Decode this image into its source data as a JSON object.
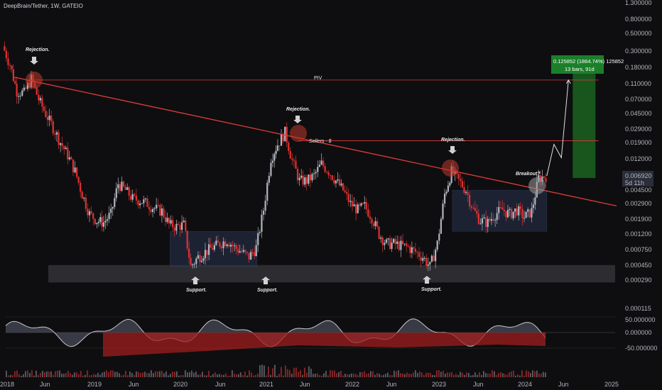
{
  "header": {
    "title": "DeepBrain/Tether, 1W, GATEIO"
  },
  "colors": {
    "up": "#b2b5be",
    "down": "#e03131",
    "bg": "#0e0e10",
    "trend": "#e03b3b",
    "target": "#1b5e20"
  },
  "price_axis": {
    "labels": [
      "1.300000",
      "0.800000",
      "0.500000",
      "0.300000",
      "0.180000",
      "0.110000",
      "0.070000",
      "0.045000",
      "0.029000",
      "0.019000",
      "0.012000",
      "0.004500",
      "0.002900",
      "0.001900",
      "0.001200",
      "0.000750",
      "0.000450",
      "0.000290",
      "0.000115"
    ],
    "current": {
      "value": "0.006920",
      "countdown": "5d 11h"
    }
  },
  "osc_axis": {
    "labels": [
      "50.000000",
      "0.000000",
      "-50.000000"
    ]
  },
  "time_axis": {
    "labels": [
      "2018",
      "Jun",
      "2019",
      "Jun",
      "2020",
      "Jun",
      "2021",
      "Jun",
      "2022",
      "Jun",
      "2023",
      "Jun",
      "2024",
      "Jun",
      "2025"
    ]
  },
  "annotations": {
    "rejection": "Rejection.",
    "support": "Support.",
    "breakout": "Breakout?",
    "sellers": "Sellers - $",
    "piv": "PIV"
  },
  "measure_box": {
    "line1": "0.125852 (1864.74%) 125852",
    "line2": "13 bars, 91d"
  },
  "chart_data": {
    "type": "candlestick",
    "title": "DeepBrain/Tether, 1W, GATEIO",
    "scale": "log",
    "ylim": [
      0.000115,
      1.3
    ],
    "x_range": [
      "2018-01",
      "2025-01"
    ],
    "close_path": [
      {
        "date": "2018-01",
        "close": 0.35
      },
      {
        "date": "2018-02",
        "close": 0.2
      },
      {
        "date": "2018-03",
        "close": 0.09
      },
      {
        "date": "2018-04",
        "close": 0.085
      },
      {
        "date": "2018-05",
        "close": 0.13
      },
      {
        "date": "2018-06",
        "close": 0.07
      },
      {
        "date": "2018-07",
        "close": 0.045
      },
      {
        "date": "2018-08",
        "close": 0.03
      },
      {
        "date": "2018-09",
        "close": 0.019
      },
      {
        "date": "2018-10",
        "close": 0.013
      },
      {
        "date": "2018-11",
        "close": 0.008
      },
      {
        "date": "2018-12",
        "close": 0.004
      },
      {
        "date": "2019-01",
        "close": 0.0022
      },
      {
        "date": "2019-02",
        "close": 0.0018
      },
      {
        "date": "2019-03",
        "close": 0.0017
      },
      {
        "date": "2019-04",
        "close": 0.0022
      },
      {
        "date": "2019-05",
        "close": 0.0055
      },
      {
        "date": "2019-06",
        "close": 0.0045
      },
      {
        "date": "2019-07",
        "close": 0.0035
      },
      {
        "date": "2019-08",
        "close": 0.0033
      },
      {
        "date": "2019-09",
        "close": 0.003
      },
      {
        "date": "2019-10",
        "close": 0.0026
      },
      {
        "date": "2019-11",
        "close": 0.0024
      },
      {
        "date": "2019-12",
        "close": 0.0016
      },
      {
        "date": "2020-01",
        "close": 0.0015
      },
      {
        "date": "2020-02",
        "close": 0.0016
      },
      {
        "date": "2020-03",
        "close": 0.00045
      },
      {
        "date": "2020-04",
        "close": 0.0006
      },
      {
        "date": "2020-05",
        "close": 0.0007
      },
      {
        "date": "2020-06",
        "close": 0.0008
      },
      {
        "date": "2020-07",
        "close": 0.0009
      },
      {
        "date": "2020-08",
        "close": 0.001
      },
      {
        "date": "2020-09",
        "close": 0.0008
      },
      {
        "date": "2020-10",
        "close": 0.0007
      },
      {
        "date": "2020-11",
        "close": 0.0006
      },
      {
        "date": "2020-12",
        "close": 0.0008
      },
      {
        "date": "2021-01",
        "close": 0.0025
      },
      {
        "date": "2021-02",
        "close": 0.012
      },
      {
        "date": "2021-03",
        "close": 0.018
      },
      {
        "date": "2021-04",
        "close": 0.026
      },
      {
        "date": "2021-05",
        "close": 0.011
      },
      {
        "date": "2021-06",
        "close": 0.006
      },
      {
        "date": "2021-07",
        "close": 0.006
      },
      {
        "date": "2021-08",
        "close": 0.007
      },
      {
        "date": "2021-09",
        "close": 0.01
      },
      {
        "date": "2021-10",
        "close": 0.008
      },
      {
        "date": "2021-11",
        "close": 0.006
      },
      {
        "date": "2021-12",
        "close": 0.0045
      },
      {
        "date": "2022-01",
        "close": 0.003
      },
      {
        "date": "2022-02",
        "close": 0.0025
      },
      {
        "date": "2022-03",
        "close": 0.0028
      },
      {
        "date": "2022-04",
        "close": 0.002
      },
      {
        "date": "2022-05",
        "close": 0.0012
      },
      {
        "date": "2022-06",
        "close": 0.0009
      },
      {
        "date": "2022-07",
        "close": 0.0009
      },
      {
        "date": "2022-08",
        "close": 0.00085
      },
      {
        "date": "2022-09",
        "close": 0.0008
      },
      {
        "date": "2022-10",
        "close": 0.0007
      },
      {
        "date": "2022-11",
        "close": 0.0006
      },
      {
        "date": "2022-12",
        "close": 0.00045
      },
      {
        "date": "2023-01",
        "close": 0.0009
      },
      {
        "date": "2023-02",
        "close": 0.004
      },
      {
        "date": "2023-03",
        "close": 0.008
      },
      {
        "date": "2023-04",
        "close": 0.006
      },
      {
        "date": "2023-05",
        "close": 0.0045
      },
      {
        "date": "2023-06",
        "close": 0.0025
      },
      {
        "date": "2023-07",
        "close": 0.0018
      },
      {
        "date": "2023-08",
        "close": 0.0017
      },
      {
        "date": "2023-09",
        "close": 0.0022
      },
      {
        "date": "2023-10",
        "close": 0.0025
      },
      {
        "date": "2023-11",
        "close": 0.0022
      },
      {
        "date": "2023-12",
        "close": 0.0025
      },
      {
        "date": "2024-01",
        "close": 0.002
      },
      {
        "date": "2024-02",
        "close": 0.0024
      },
      {
        "date": "2024-03",
        "close": 0.0065
      },
      {
        "date": "2024-04",
        "close": 0.00692
      }
    ],
    "projection": [
      {
        "date": "2024-04",
        "close": 0.00692
      },
      {
        "date": "2024-05",
        "close": 0.018
      },
      {
        "date": "2024-06",
        "close": 0.012
      },
      {
        "date": "2024-07",
        "close": 0.125
      }
    ],
    "levels": [
      {
        "label": "PIV",
        "price": 0.125
      },
      {
        "label": "Sellers - $",
        "price": 0.02
      }
    ],
    "support_zone": [
      0.00029,
      0.00045
    ],
    "ranges": [
      {
        "from": "2019-12",
        "to": "2020-12",
        "low": 0.00045,
        "high": 0.0013
      },
      {
        "from": "2023-03",
        "to": "2024-04",
        "low": 0.0013,
        "high": 0.0045
      }
    ],
    "trendline": [
      {
        "date": "2018-04",
        "price": 0.125
      },
      {
        "date": "2025-01",
        "price": 0.0028
      }
    ],
    "target_box": {
      "from": "2024-07",
      "to": "2024-10",
      "low": 0.0065,
      "high": 0.38
    }
  }
}
